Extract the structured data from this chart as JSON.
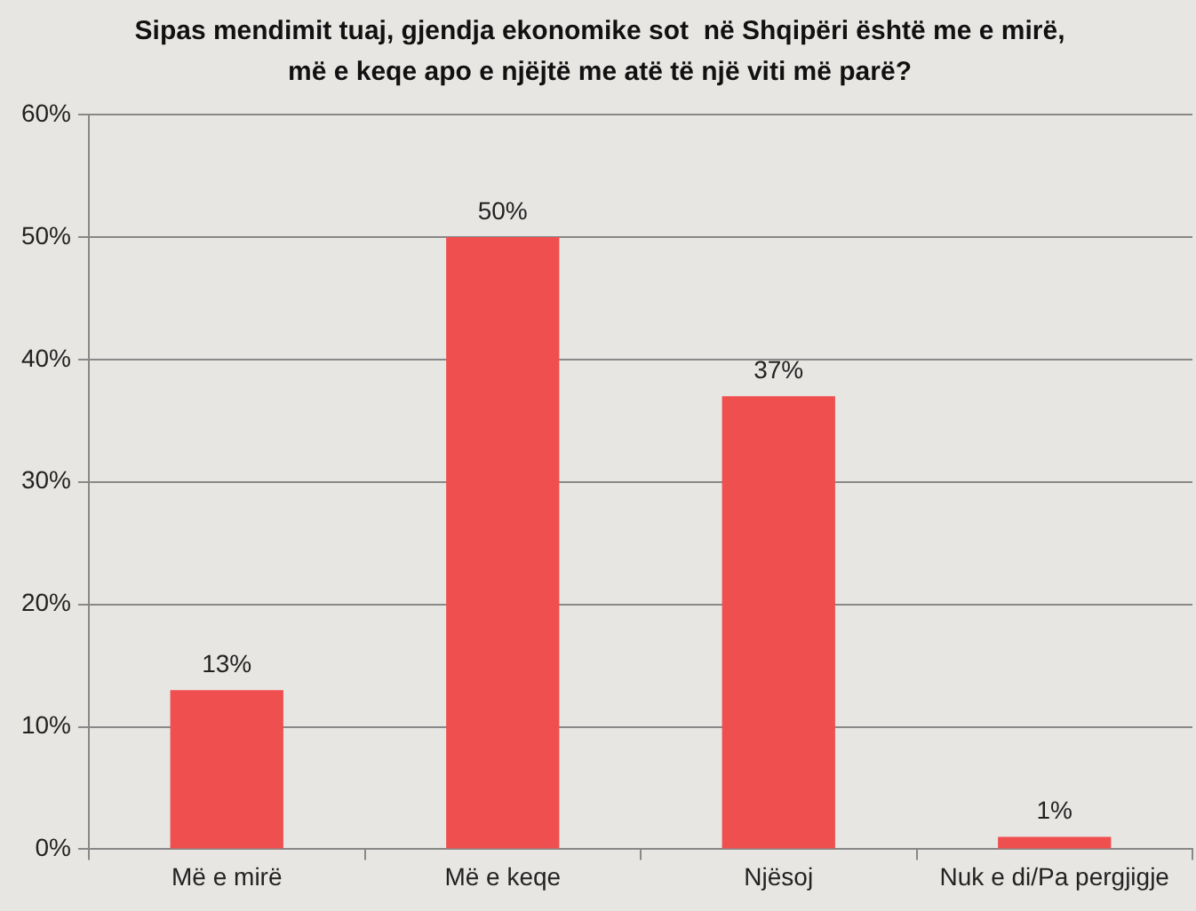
{
  "chart_data": {
    "type": "bar",
    "title": "Sipas mendimit tuaj, gjendja ekonomike sot  në Shqipëri është me e mirë,\nmë e keqe apo e njëjtë me atë të një viti më parë?",
    "categories": [
      "Më e mirë",
      "Më e keqe",
      "Njësoj",
      "Nuk e di/Pa pergjigje"
    ],
    "values": [
      13,
      50,
      37,
      1
    ],
    "value_labels": [
      "13%",
      "50%",
      "37%",
      "1%"
    ],
    "color": "#f04f4f",
    "ylim": [
      0,
      60
    ],
    "yticks": [
      {
        "value": 0,
        "label": "0%"
      },
      {
        "value": 10,
        "label": "10%"
      },
      {
        "value": 20,
        "label": "20%"
      },
      {
        "value": 30,
        "label": "30%"
      },
      {
        "value": 40,
        "label": "40%"
      },
      {
        "value": 50,
        "label": "50%"
      },
      {
        "value": 60,
        "label": "60%"
      }
    ],
    "grid": "y"
  }
}
